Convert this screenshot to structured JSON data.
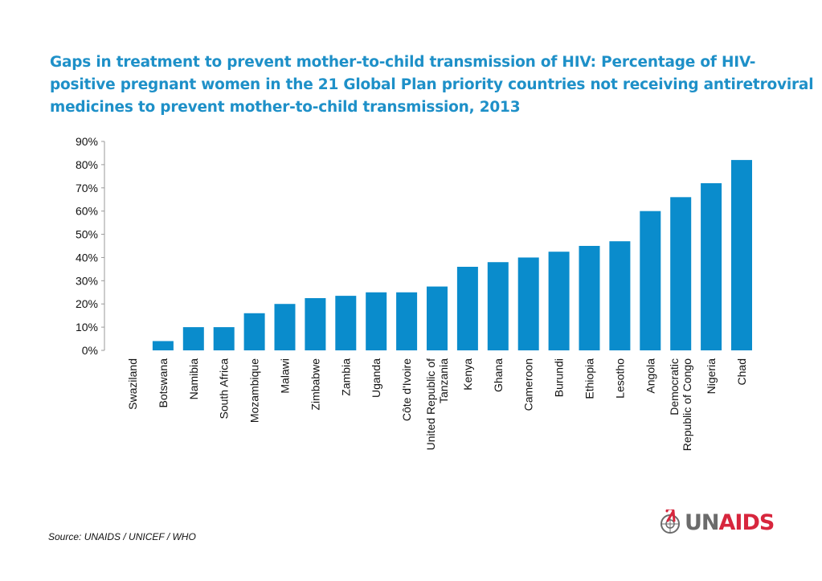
{
  "title_lines": [
    "Gaps in treatment to prevent mother-to-child transmission of HIV: Percentage of HIV-",
    "positive pregnant women in the 21 Global Plan priority countries not receiving antiretroviral",
    "medicines to prevent mother-to-child transmission, 2013"
  ],
  "source": "Source: UNAIDS / UNICEF / WHO",
  "logo": {
    "un": "UN",
    "aids": "AIDS"
  },
  "colors": {
    "title": "#1e90c8",
    "bar": "#0a8ccc",
    "logo_red": "#d7263d",
    "logo_gray": "#6b6b6b"
  },
  "chart_data": {
    "type": "bar",
    "title": "Gaps in treatment to prevent mother-to-child transmission of HIV: Percentage of HIV-positive pregnant women in the 21 Global Plan priority countries not receiving antiretroviral medicines to prevent mother-to-child transmission, 2013",
    "categories": [
      [
        "Swaziland"
      ],
      [
        "Botswana"
      ],
      [
        "Namibia"
      ],
      [
        "South Africa"
      ],
      [
        "Mozambique"
      ],
      [
        "Malawi"
      ],
      [
        "Zimbabwe"
      ],
      [
        "Zambia"
      ],
      [
        "Uganda"
      ],
      [
        "Côte d'Ivoire"
      ],
      [
        "United Republic of",
        "Tanzania"
      ],
      [
        "Kenya"
      ],
      [
        "Ghana"
      ],
      [
        "Cameroon"
      ],
      [
        "Burundi"
      ],
      [
        "Ethiopia"
      ],
      [
        "Lesotho"
      ],
      [
        "Angola"
      ],
      [
        "Democratic",
        "Republic of Congo"
      ],
      [
        "Nigeria"
      ],
      [
        "Chad"
      ]
    ],
    "values": [
      0,
      4,
      10,
      10,
      16,
      20,
      22.5,
      23.5,
      25,
      25,
      27.5,
      36,
      38,
      40,
      42.5,
      45,
      47,
      60,
      66,
      72,
      82
    ],
    "ylim": [
      0,
      90
    ],
    "yticks": [
      "0%",
      "10%",
      "20%",
      "30%",
      "40%",
      "50%",
      "60%",
      "70%",
      "80%",
      "90%"
    ],
    "xlabel": "",
    "ylabel": "",
    "grid": false,
    "legend": "none"
  }
}
